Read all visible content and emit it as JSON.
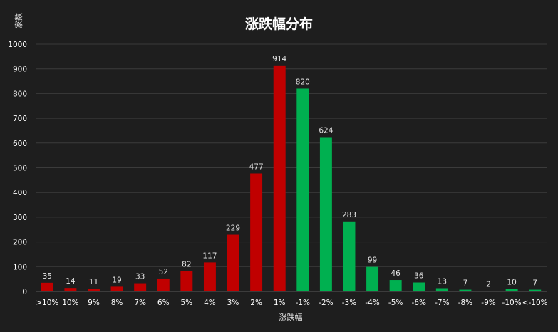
{
  "chart_data": {
    "type": "bar",
    "title": "涨跌幅分布",
    "xlabel": "涨跌幅",
    "ylabel": "家数",
    "ylim": [
      0,
      1000
    ],
    "yticks": [
      0,
      100,
      200,
      300,
      400,
      500,
      600,
      700,
      800,
      900,
      1000
    ],
    "grid": true,
    "categories": [
      ">10%",
      "10%",
      "9%",
      "8%",
      "7%",
      "6%",
      "5%",
      "4%",
      "3%",
      "2%",
      "1%",
      "-1%",
      "-2%",
      "-3%",
      "-4%",
      "-5%",
      "-6%",
      "-7%",
      "-8%",
      "-9%",
      "-10%",
      "<-10%"
    ],
    "values": [
      35,
      14,
      11,
      19,
      33,
      52,
      82,
      117,
      229,
      477,
      914,
      820,
      624,
      283,
      99,
      46,
      36,
      13,
      7,
      2,
      10,
      7
    ],
    "colors": {
      "up": "#c00000",
      "down": "#00b050"
    },
    "up_count": 11
  }
}
